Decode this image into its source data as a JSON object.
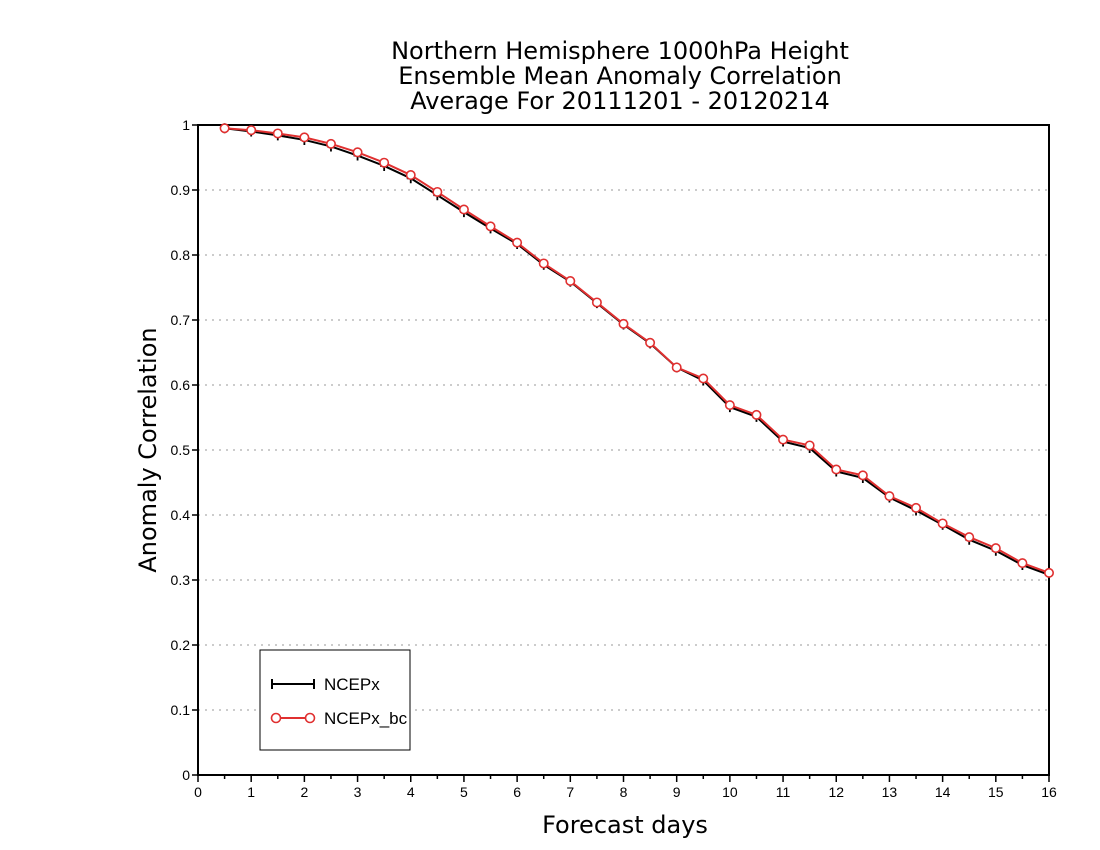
{
  "chart_data": {
    "type": "line",
    "title": [
      "Northern Hemisphere 1000hPa Height",
      "Ensemble Mean Anomaly Correlation",
      "Average For 20111201 - 20120214"
    ],
    "xlabel": "Forecast days",
    "ylabel": "Anomaly Correlation",
    "xlim": [
      0,
      16
    ],
    "ylim": [
      0,
      1
    ],
    "xticks": [
      "0",
      "1",
      "2",
      "3",
      "4",
      "5",
      "6",
      "7",
      "8",
      "9",
      "10",
      "11",
      "12",
      "13",
      "14",
      "15",
      "16"
    ],
    "yticks": [
      "0",
      "0.1",
      "0.2",
      "0.3",
      "0.4",
      "0.5",
      "0.6",
      "0.7",
      "0.8",
      "0.9",
      "1"
    ],
    "grid": "horizontal-dotted",
    "legend_position": "bottom-left",
    "x": [
      0.5,
      1,
      1.5,
      2,
      2.5,
      3,
      3.5,
      4,
      4.5,
      5,
      5.5,
      6,
      6.5,
      7,
      7.5,
      8,
      8.5,
      9,
      9.5,
      10,
      10.5,
      11,
      11.5,
      12,
      12.5,
      13,
      13.5,
      14,
      14.5,
      15,
      15.5,
      16
    ],
    "series": [
      {
        "name": "NCEPx",
        "color": "#000000",
        "marker": "plus",
        "values": [
          0.995,
          0.99,
          0.984,
          0.977,
          0.967,
          0.953,
          0.937,
          0.918,
          0.892,
          0.866,
          0.841,
          0.817,
          0.785,
          0.759,
          0.726,
          0.693,
          0.664,
          0.627,
          0.607,
          0.566,
          0.551,
          0.513,
          0.503,
          0.467,
          0.457,
          0.427,
          0.407,
          0.385,
          0.362,
          0.345,
          0.323,
          0.308
        ]
      },
      {
        "name": "NCEPx_bc",
        "color": "#e03030",
        "marker": "circle",
        "values": [
          0.995,
          0.992,
          0.987,
          0.981,
          0.971,
          0.958,
          0.942,
          0.923,
          0.897,
          0.87,
          0.844,
          0.819,
          0.787,
          0.76,
          0.727,
          0.694,
          0.665,
          0.627,
          0.61,
          0.569,
          0.554,
          0.516,
          0.507,
          0.47,
          0.461,
          0.429,
          0.411,
          0.387,
          0.366,
          0.349,
          0.326,
          0.311
        ]
      }
    ]
  }
}
